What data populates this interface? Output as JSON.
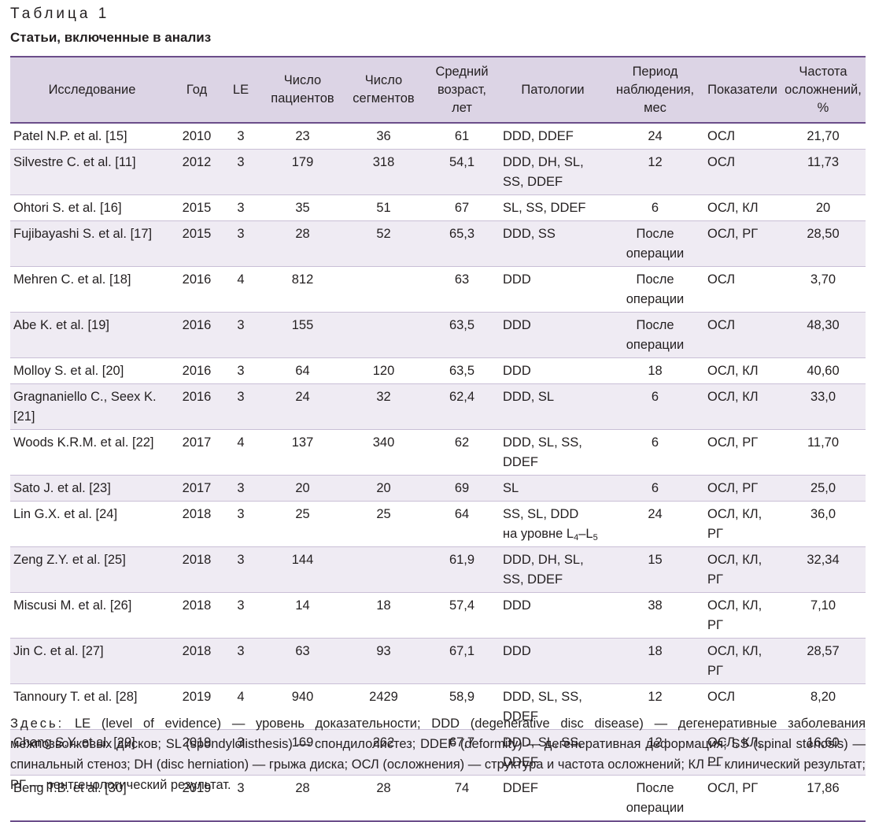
{
  "caption": {
    "number": "Таблица 1",
    "title": "Статьи, включенные в анализ"
  },
  "table": {
    "headers": [
      "Исследование",
      "Год",
      "LE",
      "Число\nпациентов",
      "Число\nсегментов",
      "Средний\nвозраст,\nлет",
      "Патологии",
      "Период\nнаблюдения,\nмес",
      "Показатели",
      "Частота\nосложнений,\n%"
    ],
    "rows": [
      {
        "study": "Patel N.P. et al. [15]",
        "year": "2010",
        "le": "3",
        "patients": "23",
        "segments": "36",
        "age": "61",
        "pathology": "DDD, DDEF",
        "followup": "24",
        "indicators": "ОСЛ",
        "rate": "21,70"
      },
      {
        "study": "Silvestre C. et al. [11]",
        "year": "2012",
        "le": "3",
        "patients": "179",
        "segments": "318",
        "age": "54,1",
        "pathology": "DDD, DH, SL,\nSS, DDEF",
        "followup": "12",
        "indicators": "ОСЛ",
        "rate": "11,73"
      },
      {
        "study": "Ohtori S. et al. [16]",
        "year": "2015",
        "le": "3",
        "patients": "35",
        "segments": "51",
        "age": "67",
        "pathology": "SL, SS, DDEF",
        "followup": "6",
        "indicators": "ОСЛ, КЛ",
        "rate": "20"
      },
      {
        "study": "Fujibayashi S. et al. [17]",
        "year": "2015",
        "le": "3",
        "patients": "28",
        "segments": "52",
        "age": "65,3",
        "pathology": "DDD, SS",
        "followup": "После операции",
        "indicators": "ОСЛ, РГ",
        "rate": "28,50"
      },
      {
        "study": "Mehren C. et al. [18]",
        "year": "2016",
        "le": "4",
        "patients": "812",
        "segments": "",
        "age": "63",
        "pathology": "DDD",
        "followup": "После операции",
        "indicators": "ОСЛ",
        "rate": "3,70"
      },
      {
        "study": "Abe K. et al. [19]",
        "year": "2016",
        "le": "3",
        "patients": "155",
        "segments": "",
        "age": "63,5",
        "pathology": "DDD",
        "followup": "После операции",
        "indicators": "ОСЛ",
        "rate": "48,30"
      },
      {
        "study": "Molloy S. et al. [20]",
        "year": "2016",
        "le": "3",
        "patients": "64",
        "segments": "120",
        "age": "63,5",
        "pathology": "DDD",
        "followup": "18",
        "indicators": "ОСЛ, КЛ",
        "rate": "40,60"
      },
      {
        "study": "Gragnaniello C., Seex K.\n[21]",
        "year": "2016",
        "le": "3",
        "patients": "24",
        "segments": "32",
        "age": "62,4",
        "pathology": "DDD, SL",
        "followup": "6",
        "indicators": "ОСЛ, КЛ",
        "rate": "33,0"
      },
      {
        "study": "Woods K.R.M. et al. [22]",
        "year": "2017",
        "le": "4",
        "patients": "137",
        "segments": "340",
        "age": "62",
        "pathology": "DDD, SL, SS,\nDDEF",
        "followup": "6",
        "indicators": "ОСЛ, РГ",
        "rate": "11,70"
      },
      {
        "study": "Sato J. et al. [23]",
        "year": "2017",
        "le": "3",
        "patients": "20",
        "segments": "20",
        "age": "69",
        "pathology": "SL",
        "followup": "6",
        "indicators": "ОСЛ, РГ",
        "rate": "25,0"
      },
      {
        "study": "Lin G.X. et al. [24]",
        "year": "2018",
        "le": "3",
        "patients": "25",
        "segments": "25",
        "age": "64",
        "pathology": "SS, SL, DDD\nна уровне L4–L5",
        "followup": "24",
        "indicators": "ОСЛ, КЛ, РГ",
        "rate": "36,0"
      },
      {
        "study": "Zeng Z.Y. et al. [25]",
        "year": "2018",
        "le": "3",
        "patients": "144",
        "segments": "",
        "age": "61,9",
        "pathology": "DDD, DH, SL,\nSS, DDEF",
        "followup": "15",
        "indicators": "ОСЛ, КЛ, РГ",
        "rate": "32,34"
      },
      {
        "study": "Miscusi M. et al. [26]",
        "year": "2018",
        "le": "3",
        "patients": "14",
        "segments": "18",
        "age": "57,4",
        "pathology": "DDD",
        "followup": "38",
        "indicators": "ОСЛ, КЛ, РГ",
        "rate": "7,10"
      },
      {
        "study": "Jin C. et al. [27]",
        "year": "2018",
        "le": "3",
        "patients": "63",
        "segments": "93",
        "age": "67,1",
        "pathology": "DDD",
        "followup": "18",
        "indicators": "ОСЛ, КЛ, РГ",
        "rate": "28,57"
      },
      {
        "study": "Tannoury T. et al. [28]",
        "year": "2019",
        "le": "4",
        "patients": "940",
        "segments": "2429",
        "age": "58,9",
        "pathology": "DDD, SL, SS,\nDDEF",
        "followup": "12",
        "indicators": "ОСЛ",
        "rate": "8,20"
      },
      {
        "study": "Chang S.Y. et al. [29]",
        "year": "2019",
        "le": "3",
        "patients": "169",
        "segments": "262",
        "age": "67,7",
        "pathology": "DDD, SL, SS,\nDDEF",
        "followup": "12",
        "indicators": "ОСЛ, КЛ, РГ",
        "rate": "16,60"
      },
      {
        "study": "Beng T.B. et al. [30]",
        "year": "2019",
        "le": "3",
        "patients": "28",
        "segments": "28",
        "age": "74",
        "pathology": "DDEF",
        "followup": "После операции",
        "indicators": "ОСЛ, РГ",
        "rate": "17,86"
      }
    ]
  },
  "footnote": {
    "lead": "Здесь:",
    "text": "LE (level of evidence) — уровень доказательности; DDD (degenerative disc disease) — дегенеративные заболевания межпозвонковых дисков; SL (spondylolisthesis) — спондилолистез; DDEF (deformity) — дегенеративная деформация; SS (spinal stenosis) — спинальный стеноз; DH (disc herniation) — грыжа диска; ОСЛ (осложнения) — структура и частота осложнений; КЛ — клинический результат; РГ — рентгенологический результат."
  }
}
